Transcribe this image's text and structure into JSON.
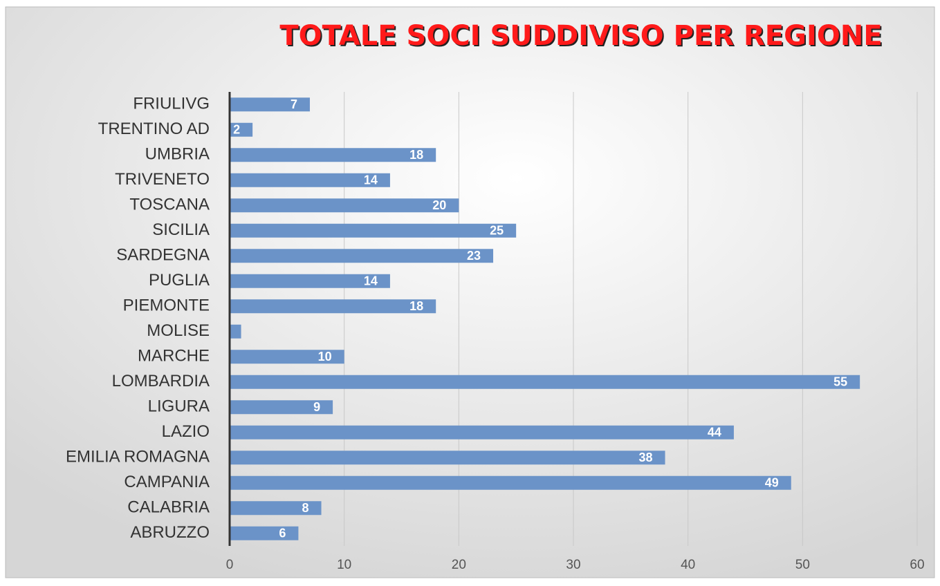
{
  "chart_data": {
    "type": "bar",
    "orientation": "horizontal",
    "title": "TOTALE SOCI SUDDIVISO PER REGIONE",
    "categories": [
      "FRIULIVG",
      "TRENTINO AD",
      "UMBRIA",
      "TRIVENETO",
      "TOSCANA",
      "SICILIA",
      "SARDEGNA",
      "PUGLIA",
      "PIEMONTE",
      "MOLISE",
      "MARCHE",
      "LOMBARDIA",
      "LIGURA",
      "LAZIO",
      "EMILIA ROMAGNA",
      "CAMPANIA",
      "CALABRIA",
      "ABRUZZO"
    ],
    "values": [
      7,
      2,
      18,
      14,
      20,
      25,
      23,
      14,
      18,
      1,
      10,
      55,
      9,
      44,
      38,
      49,
      8,
      6
    ],
    "color": "#6b93c8",
    "xlim": [
      0,
      60
    ],
    "xticks": [
      0,
      10,
      20,
      30,
      40,
      50,
      60
    ],
    "grid": true
  }
}
